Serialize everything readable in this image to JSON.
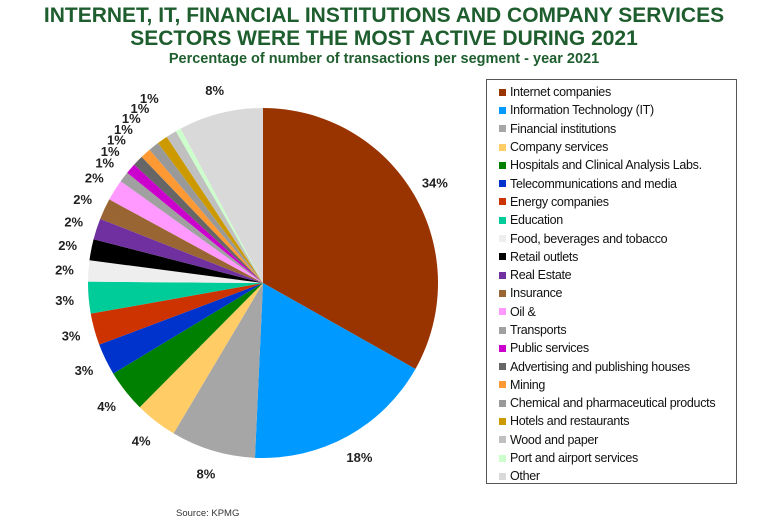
{
  "title_line1": "INTERNET, IT, FINANCIAL INSTITUTIONS AND COMPANY SERVICES",
  "title_line2": "SECTORS WERE THE MOST ACTIVE DURING 2021",
  "subtitle": "Percentage of number of transactions per segment - year 2021",
  "source": "Source: KPMG",
  "chart_data": {
    "type": "pie",
    "title": "INTERNET, IT, FINANCIAL INSTITUTIONS AND COMPANY SERVICES SECTORS WERE THE MOST ACTIVE DURING 2021",
    "subtitle": "Percentage of number of transactions per segment - year 2021",
    "unit": "%",
    "legend_position": "right",
    "start": "top, clockwise",
    "slices": [
      {
        "label": "Internet companies",
        "value": 34,
        "color": "#993300"
      },
      {
        "label": "Information Technology (IT)",
        "value": 18,
        "color": "#0099ff"
      },
      {
        "label": "Financial institutions",
        "value": 8,
        "color": "#a6a6a6"
      },
      {
        "label": "Company services",
        "value": 4,
        "color": "#ffcc66"
      },
      {
        "label": "Hospitals and Clinical Analysis Labs.",
        "value": 4,
        "color": "#008000"
      },
      {
        "label": "Telecommunications and media",
        "value": 3,
        "color": "#0033cc"
      },
      {
        "label": "Energy companies",
        "value": 3,
        "color": "#cc3300"
      },
      {
        "label": "Education",
        "value": 3,
        "color": "#00cc99"
      },
      {
        "label": "Food, beverages and tobacco",
        "value": 2,
        "color": "#eeeeee"
      },
      {
        "label": "Retail outlets",
        "value": 2,
        "color": "#000000"
      },
      {
        "label": "Real Estate",
        "value": 2,
        "color": "#7030a0"
      },
      {
        "label": "Insurance",
        "value": 2,
        "color": "#996633"
      },
      {
        "label": "Oil &",
        "value": 2,
        "color": "#ff99ff"
      },
      {
        "label": "Transports",
        "value": 1,
        "color": "#a0a0a0"
      },
      {
        "label": "Public services",
        "value": 1,
        "color": "#cc00cc"
      },
      {
        "label": "Advertising and publishing houses",
        "value": 1,
        "color": "#666666"
      },
      {
        "label": "Mining",
        "value": 1,
        "color": "#ff9933"
      },
      {
        "label": "Chemical and pharmaceutical products",
        "value": 1,
        "color": "#999999"
      },
      {
        "label": "Hotels and restaurants",
        "value": 1,
        "color": "#cc9900"
      },
      {
        "label": "Wood and paper",
        "value": 1,
        "color": "#c0c0c0"
      },
      {
        "label": "Port  and airport services",
        "value": 0.5,
        "color": "#ccffcc"
      },
      {
        "label": "Other",
        "value": 8,
        "color": "#d9d9d9"
      }
    ],
    "data_labels": [
      "34%",
      "18%",
      "8%",
      "4%",
      "4%",
      "3%",
      "3%",
      "3%",
      "2%",
      "2%",
      "2%",
      "2%",
      "2%",
      "1%",
      "1%",
      "1%",
      "1%",
      "1%",
      "1%",
      "1%",
      "",
      "8%"
    ]
  }
}
